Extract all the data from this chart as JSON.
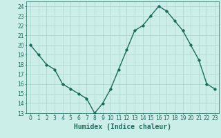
{
  "x": [
    0,
    1,
    2,
    3,
    4,
    5,
    6,
    7,
    8,
    9,
    10,
    11,
    12,
    13,
    14,
    15,
    16,
    17,
    18,
    19,
    20,
    21,
    22,
    23
  ],
  "y": [
    20,
    19,
    18,
    17.5,
    16,
    15.5,
    15,
    14.5,
    13,
    14,
    15.5,
    17.5,
    19.5,
    21.5,
    22,
    23,
    24,
    23.5,
    22.5,
    21.5,
    20,
    18.5,
    16,
    15.5
  ],
  "line_color": "#1a6b5a",
  "marker": "D",
  "marker_size": 1.8,
  "bg_color": "#cceee8",
  "grid_color": "#aad4cc",
  "xlabel": "Humidex (Indice chaleur)",
  "xlabel_fontsize": 7,
  "ylim": [
    13,
    24.5
  ],
  "xlim": [
    -0.5,
    23.5
  ],
  "yticks": [
    13,
    14,
    15,
    16,
    17,
    18,
    19,
    20,
    21,
    22,
    23,
    24
  ],
  "xticks": [
    0,
    1,
    2,
    3,
    4,
    5,
    6,
    7,
    8,
    9,
    10,
    11,
    12,
    13,
    14,
    15,
    16,
    17,
    18,
    19,
    20,
    21,
    22,
    23
  ],
  "tick_fontsize": 5.5,
  "tick_color": "#1a6b5a",
  "line_width": 1.0
}
